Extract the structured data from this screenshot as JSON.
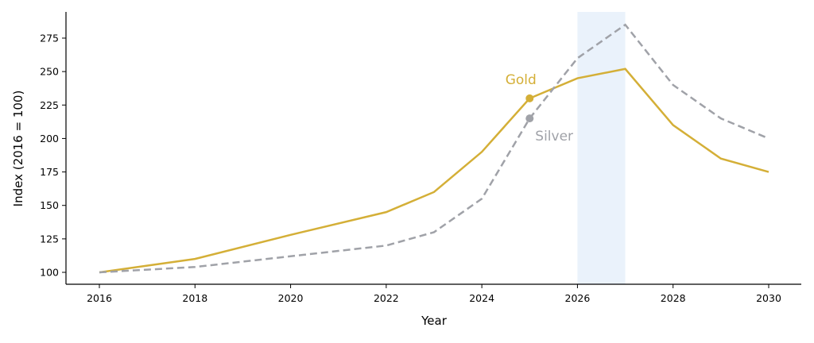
{
  "chart_data": {
    "type": "line",
    "title": "",
    "xlabel": "Year",
    "ylabel": "Index (2016 = 100)",
    "xlim": [
      2015.3,
      2030.7
    ],
    "ylim": [
      91,
      295
    ],
    "xticks": [
      2016,
      2018,
      2020,
      2022,
      2024,
      2026,
      2028,
      2030
    ],
    "yticks": [
      100,
      125,
      150,
      175,
      200,
      225,
      250,
      275
    ],
    "grid": false,
    "highlight_span": [
      2026,
      2027
    ],
    "series": [
      {
        "name": "Gold",
        "color": "#d4af37",
        "style": "solid",
        "x": [
          2016,
          2018,
          2020,
          2022,
          2023,
          2024,
          2025,
          2026,
          2027,
          2028,
          2029,
          2030
        ],
        "y": [
          100,
          110,
          128,
          145,
          160,
          190,
          230,
          245,
          252,
          210,
          185,
          175
        ]
      },
      {
        "name": "Silver",
        "color": "#a0a2a8",
        "style": "dashed",
        "x": [
          2016,
          2018,
          2020,
          2022,
          2023,
          2024,
          2025,
          2026,
          2027,
          2028,
          2029,
          2030
        ],
        "y": [
          100,
          104,
          112,
          120,
          130,
          155,
          215,
          260,
          285,
          240,
          215,
          200
        ]
      }
    ],
    "annotations": [
      {
        "text": "Gold",
        "series": "Gold",
        "x": 2025,
        "y": 230
      },
      {
        "text": "Silver",
        "series": "Silver",
        "x": 2025,
        "y": 215
      }
    ]
  }
}
